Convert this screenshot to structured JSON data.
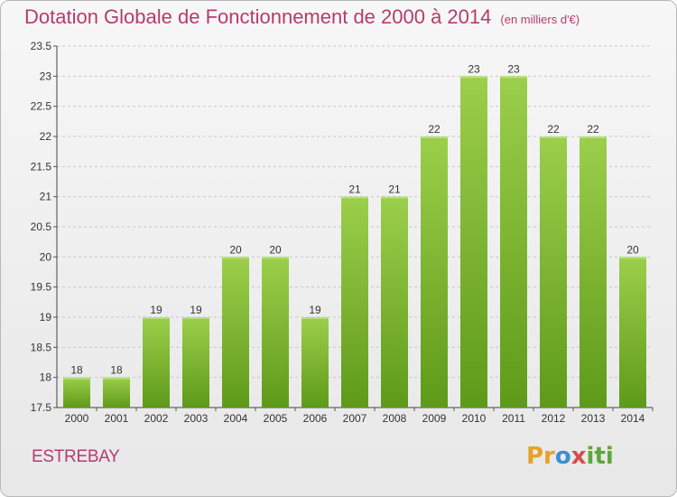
{
  "title": "Dotation Globale de Fonctionnement de 2000 à 2014",
  "unit": "(en milliers d'€)",
  "commune": "ESTREBAY",
  "logo": "Proxiti",
  "colors": {
    "bar_top": "#9ccf4b",
    "bar_bottom": "#5e9a19",
    "title": "#b43c6e",
    "grid": "#c8c8c8"
  },
  "chart_data": {
    "type": "bar",
    "categories": [
      "2000",
      "2001",
      "2002",
      "2003",
      "2004",
      "2005",
      "2006",
      "2007",
      "2008",
      "2009",
      "2010",
      "2011",
      "2012",
      "2013",
      "2014"
    ],
    "values": [
      18,
      18,
      19,
      19,
      20,
      20,
      19,
      21,
      21,
      22,
      23,
      23,
      22,
      22,
      20
    ],
    "data_labels": [
      "18",
      "18",
      "19",
      "19",
      "20",
      "20",
      "19",
      "21",
      "21",
      "22",
      "23",
      "23",
      "22",
      "22",
      "20"
    ],
    "ylim": [
      17.5,
      23.5
    ],
    "yticks": [
      17.5,
      18,
      18.5,
      19,
      19.5,
      20,
      20.5,
      21,
      21.5,
      22,
      22.5,
      23,
      23.5
    ],
    "ytick_labels": [
      "17.5",
      "18",
      "18.5",
      "19",
      "19.5",
      "20",
      "20.5",
      "21",
      "21.5",
      "22",
      "22.5",
      "23",
      "23.5"
    ],
    "grid": true,
    "xlabel": "",
    "ylabel": ""
  }
}
